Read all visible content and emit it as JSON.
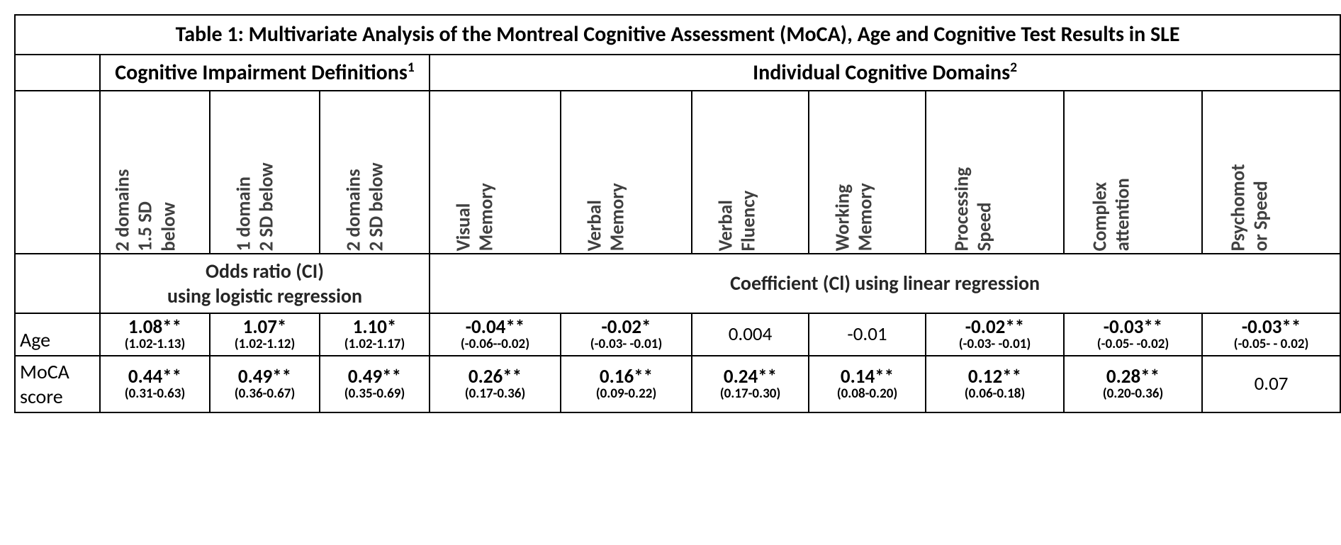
{
  "table": {
    "title": "Table 1: Multivariate Analysis of the Montreal Cognitive Assessment (MoCA), Age and Cognitive Test Results in SLE",
    "groupHeaders": {
      "impairment": {
        "label": "Cognitive Impairment Definitions",
        "sup": "1"
      },
      "domains": {
        "label": "Individual Cognitive Domains",
        "sup": "2"
      }
    },
    "columns": [
      "2 domains 1.5 SD below",
      "1 domain 2 SD below",
      "2 domains 2 SD below",
      "Visual Memory",
      "Verbal Memory",
      "Verbal Fluency",
      "Working Memory",
      "Processing Speed",
      "Complex attention",
      "Psychomot or Speed"
    ],
    "columnsLine1": [
      "2 domains",
      "1 domain",
      "2 domains",
      "Visual",
      "Verbal",
      "Verbal",
      "Working",
      "Processing",
      "Complex",
      "Psychomot"
    ],
    "columnsLine2": [
      "1.5 SD",
      "2 SD below",
      "2 SD below",
      "Memory",
      "Memory",
      "Fluency",
      "Memory",
      "Speed",
      "attention",
      "or Speed"
    ],
    "columnsLine3": [
      "below",
      "",
      "",
      "",
      "",
      "",
      "",
      "",
      "",
      ""
    ],
    "subHeaders": {
      "left": "Odds ratio (CI)\nusing logistic regression",
      "leftLine1": "Odds ratio (CI)",
      "leftLine2": "using logistic regression",
      "right": "Coefficient (Cl) using linear regression"
    },
    "rows": [
      {
        "label": "Age",
        "cells": [
          {
            "value": "1.08**",
            "ci": "(1.02-1.13)",
            "bold": true
          },
          {
            "value": "1.07*",
            "ci": "(1.02-1.12)",
            "bold": true
          },
          {
            "value": "1.10*",
            "ci": "(1.02-1.17)",
            "bold": true
          },
          {
            "value": "-0.04**",
            "ci": "(-0.06--0.02)",
            "bold": true
          },
          {
            "value": "-0.02*",
            "ci": "(-0.03- -0.01)",
            "bold": true
          },
          {
            "value": "0.004",
            "ci": "",
            "bold": false
          },
          {
            "value": "-0.01",
            "ci": "",
            "bold": false
          },
          {
            "value": "-0.02**",
            "ci": "(-0.03- -0.01)",
            "bold": true
          },
          {
            "value": "-0.03**",
            "ci": "(-0.05- -0.02)",
            "bold": true
          },
          {
            "value": "-0.03**",
            "ci": "(-0.05- - 0.02)",
            "bold": true
          }
        ]
      },
      {
        "label": "MoCA score",
        "cells": [
          {
            "value": "0.44**",
            "ci": "(0.31-0.63)",
            "bold": true
          },
          {
            "value": "0.49**",
            "ci": "(0.36-0.67)",
            "bold": true
          },
          {
            "value": "0.49**",
            "ci": "(0.35-0.69)",
            "bold": true
          },
          {
            "value": "0.26**",
            "ci": "(0.17-0.36)",
            "bold": true
          },
          {
            "value": "0.16**",
            "ci": "(0.09-0.22)",
            "bold": true
          },
          {
            "value": "0.24**",
            "ci": "(0.17-0.30)",
            "bold": true
          },
          {
            "value": "0.14**",
            "ci": "(0.08-0.20)",
            "bold": true
          },
          {
            "value": "0.12**",
            "ci": "(0.06-0.18)",
            "bold": true
          },
          {
            "value": "0.28**",
            "ci": "(0.20-0.36)",
            "bold": true
          },
          {
            "value": "0.07",
            "ci": "",
            "bold": false
          }
        ]
      }
    ]
  },
  "style": {
    "background_color": "#ffffff",
    "border_color": "#000000",
    "text_color": "#000000",
    "vertical_text_color": "#404040",
    "title_fontsize": 30,
    "group_header_fontsize": 30,
    "vertical_header_fontsize": 27,
    "subheader_fontsize": 28,
    "rowlabel_fontsize": 28,
    "value_fontsize": 27,
    "ci_fontsize": 19,
    "font_family": "Calibri"
  }
}
